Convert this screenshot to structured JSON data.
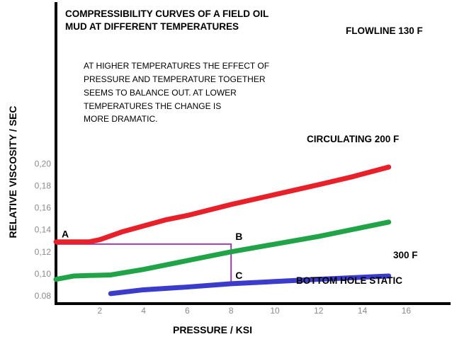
{
  "chart_data": {
    "type": "line",
    "title": [
      "COMPRESSIBILITY CURVES OF A FIELD OIL",
      "MUD AT DIFFERENT TEMPERATURES"
    ],
    "xlabel": "PRESSURE / KSI",
    "ylabel": "RELATIVE VISCOSITY / SEC",
    "xlim": [
      0,
      18
    ],
    "ylim": [
      0.08,
      0.22
    ],
    "x_ticks": [
      2,
      4,
      6,
      8,
      10,
      12,
      14,
      16
    ],
    "x_tick_labels": [
      "2",
      "4",
      "6",
      "8",
      "10",
      "12",
      "14",
      "16"
    ],
    "y_ticks": [
      0.08,
      0.1,
      0.12,
      0.14,
      0.16,
      0.18,
      0.2
    ],
    "y_tick_labels": [
      "0.08",
      "0,10",
      "0,12",
      "0,14",
      "0,16",
      "0,18",
      "0,20"
    ],
    "grid": false,
    "series": [
      {
        "name": "FLOWLINE  130 F",
        "color": "#e8202a",
        "x": [
          0.0,
          1.5,
          2.0,
          3.0,
          5.0,
          6.0,
          8.0,
          10.0,
          12.0,
          13.5,
          15.2
        ],
        "y": [
          0.129,
          0.129,
          0.131,
          0.138,
          0.149,
          0.153,
          0.163,
          0.172,
          0.181,
          0.188,
          0.197
        ]
      },
      {
        "name": "CIRCULATING 200 F",
        "color": "#21a448",
        "x": [
          0.0,
          0.8,
          1.5,
          2.5,
          4.0,
          6.0,
          8.0,
          10.0,
          12.0,
          15.2
        ],
        "y": [
          0.095,
          0.098,
          0.0985,
          0.099,
          0.104,
          0.112,
          0.12,
          0.127,
          0.134,
          0.147
        ]
      },
      {
        "name": "300 F",
        "color": "#3b3ccc",
        "x": [
          2.5,
          4.0,
          6.0,
          8.0,
          10.0,
          12.0,
          15.2
        ],
        "y": [
          0.082,
          0.0855,
          0.088,
          0.091,
          0.093,
          0.095,
          0.098
        ]
      }
    ],
    "series_labels": {
      "flowline": "FLOWLINE  130 F",
      "circulating": "CIRCULATING 200 F",
      "temp300": "300 F",
      "bottom_hole": "BOTTOM HOLE STATIC"
    },
    "reference_path": {
      "color": "#9b3fa8",
      "points": [
        [
          0.0,
          0.127
        ],
        [
          8.0,
          0.127
        ],
        [
          8.0,
          0.092
        ]
      ]
    },
    "point_labels": [
      {
        "label": "A",
        "x": 0.0,
        "y": 0.131
      },
      {
        "label": "B",
        "x": 8.0,
        "y": 0.129
      },
      {
        "label": "C",
        "x": 8.0,
        "y": 0.0935
      }
    ],
    "annotation": [
      "AT HIGHER TEMPERATURES THE EFFECT OF",
      "PRESSURE AND TEMPERATURE TOGETHER",
      "SEEMS TO BALANCE OUT.  AT LOWER",
      "TEMPERATURES THE CHANGE IS",
      "MORE DRAMATIC."
    ]
  }
}
